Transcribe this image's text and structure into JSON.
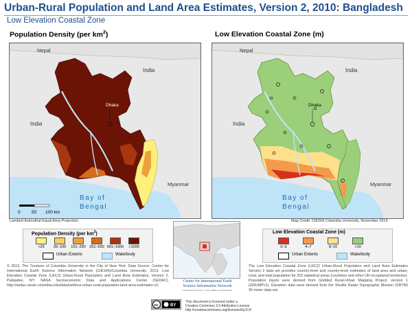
{
  "header": {
    "title": "Urban-Rural Population and Land Area Estimates, Version 2, 2010: Bangladesh",
    "subtitle": "Low Elevation Coastal Zone"
  },
  "left_map": {
    "title": "Population Density (per km",
    "title_sup": "2",
    "title_end": ")",
    "labels": {
      "nepal": "Nepal",
      "india_ne": "India",
      "india_w": "India",
      "myanmar": "Myanmar",
      "dhaka": "Dhaka",
      "bay1": "Bay of",
      "bay2": "Bengal"
    },
    "scale": {
      "t0": "0",
      "t1": "50",
      "t2": "100 km"
    },
    "credit": "Lambert Azimuthal Equal Area Projection"
  },
  "right_map": {
    "title": "Low Elevation Coastal Zone (m)",
    "labels": {
      "nepal": "Nepal",
      "india_ne": "India",
      "india_w": "India",
      "myanmar": "Myanmar",
      "dhaka": "Dhaka",
      "bay1": "Bay of",
      "bay2": "Bengal"
    },
    "credit": "Map Credit: CIESIN Columbia University, November 2013"
  },
  "left_legend": {
    "title": "Population Density (per km",
    "title_sup": "2",
    "title_end": ")",
    "classes": [
      {
        "label": "<25",
        "color": "#fff07a"
      },
      {
        "label": "26–100",
        "color": "#f8cf5c"
      },
      {
        "label": "101–250",
        "color": "#eea03c"
      },
      {
        "label": "251–500",
        "color": "#d96a1e"
      },
      {
        "label": "501–1000",
        "color": "#a8370f"
      },
      {
        "label": ">1000",
        "color": "#6b1405"
      }
    ],
    "urban_label": "Urban Extents",
    "water_label": "Waterbody"
  },
  "right_legend": {
    "title": "Low Elevation Coastal Zone (m)",
    "classes": [
      {
        "label": "0–3",
        "color": "#d7301f"
      },
      {
        "label": "4–7",
        "color": "#f59a4a"
      },
      {
        "label": "8–10",
        "color": "#fee08b"
      },
      {
        "label": ">10",
        "color": "#9ccf7a"
      }
    ],
    "urban_label": "Urban Extents",
    "water_label": "Waterbody"
  },
  "notes": {
    "left": "© 2013. The Trustees of Columbia University in the City of New York. Data Source: Center for International Earth Science Information Network (CIESIN)/Columbia University. 2013. Low Elevation Coastal Zone (LECZ) Urban-Rural Population and Land Area Estimates, Version 2. Palisades, NY: NASA Socioeconomic Data and Applications Center (SEDAC). http://sedac.ciesin.columbia.edu/data/set/lecz-urban-rural-population-land-area-estimates-v2.",
    "right": "The Low Elevation Coastal Zone (LECZ) Urban-Rural Population and Land Area Estimates Version 2 data set provides country-level and country-level estimates of land area and urban, rural, and total population for 202 statistical areas (countries and other UN recognized territories). Population inputs were derived from Gridded Rural-Urban Mapping Project, version 1 (GRUMPv1). Elevation data were derived from the Shuttle Radar Topographic Mission (SRTM) 90 meter data set."
  },
  "logo": {
    "line1": "Center for International Earth",
    "line2": "Science Information Network",
    "line3": "EARTH INSTITUTE | COLUMBIA UNIVERSITY"
  },
  "license": {
    "line1": "This document is licensed under a",
    "line2": "Creative Commons 3.0 Attribution License",
    "line3": "http://creativecommons.org/licenses/by/3.0/"
  },
  "colors": {
    "title": "#1f4e8c",
    "water": "#bfe3f7",
    "land": "#e8e8e8"
  }
}
